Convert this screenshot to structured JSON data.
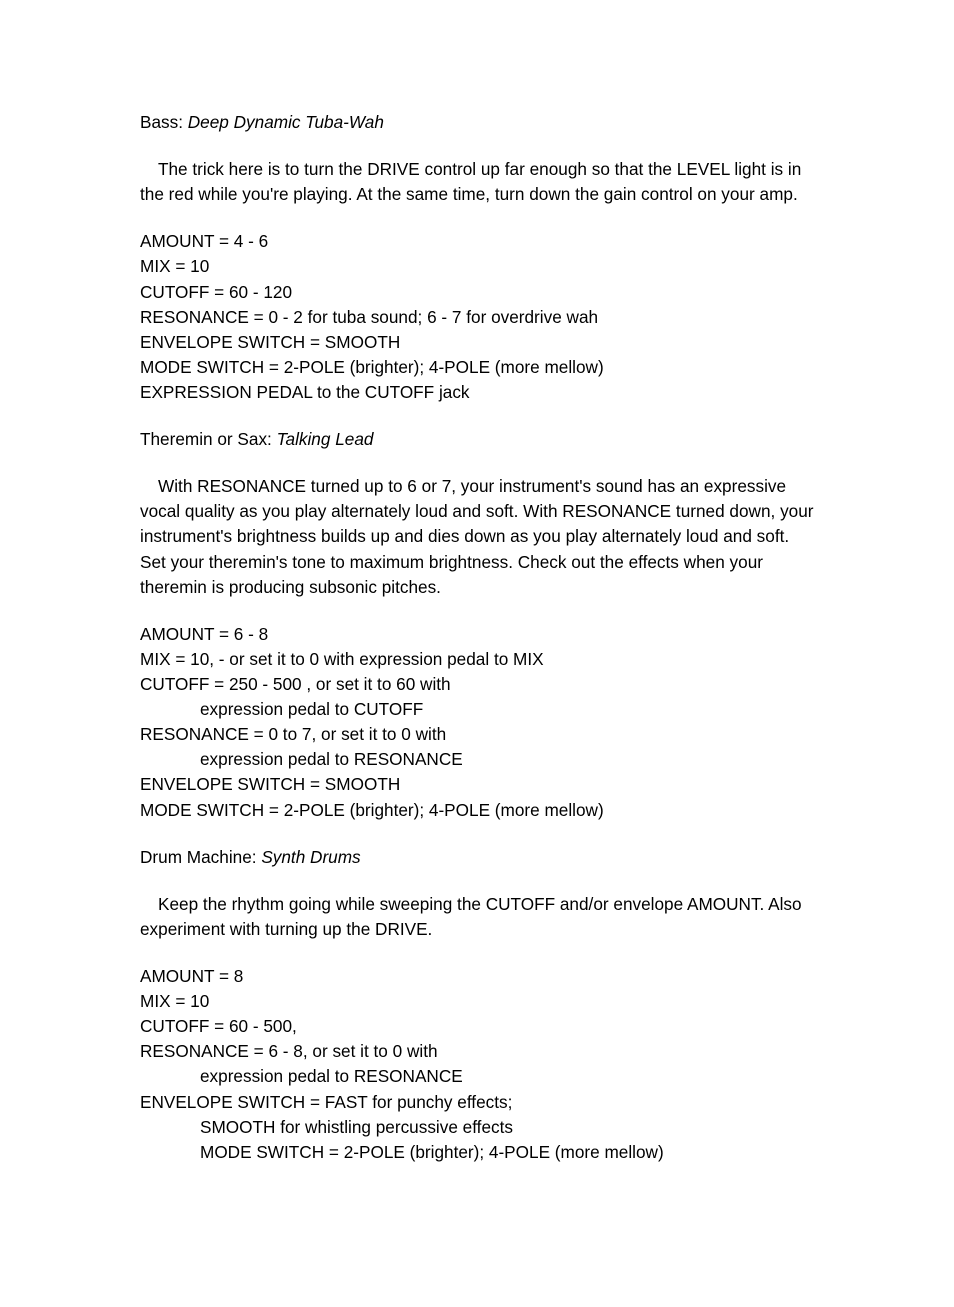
{
  "sections": [
    {
      "heading_prefix": "Bass: ",
      "heading_title": "Deep Dynamic Tuba-Wah",
      "paragraph": "The trick here is to turn the DRIVE control up far enough so that the LEVEL light is in the red while you're playing. At the same time, turn down the gain control on your amp.",
      "settings": [
        "AMOUNT = 4 - 6",
        "MIX = 10",
        "CUTOFF = 60 - 120",
        "RESONANCE = 0 - 2 for tuba sound; 6 - 7 for overdrive wah",
        "ENVELOPE SWITCH = SMOOTH",
        "MODE SWITCH = 2-POLE (brighter); 4-POLE (more mellow)",
        "EXPRESSION PEDAL to the CUTOFF jack"
      ],
      "conts": []
    },
    {
      "heading_prefix": "Theremin or Sax: ",
      "heading_title": "Talking Lead",
      "paragraph": "With RESONANCE turned up to 6 or 7, your instrument's sound has an expressive vocal quality as you play alternately loud and soft. With RESONANCE turned down, your instrument's brightness builds up and dies down as you play alternately loud and soft. Set your theremin's tone to maximum brightness. Check out the effects when your theremin is producing subsonic pitches.",
      "settings": [
        "AMOUNT = 6 - 8",
        "MIX = 10, - or set it to 0 with expression pedal to MIX",
        "CUTOFF = 250 - 500 , or set it to 60 with",
        "expression pedal to CUTOFF",
        "RESONANCE = 0 to 7, or set it to 0 with",
        "expression pedal to RESONANCE",
        "ENVELOPE SWITCH = SMOOTH",
        "MODE SWITCH = 2-POLE (brighter); 4-POLE (more mellow)"
      ],
      "conts": [
        3,
        5
      ]
    },
    {
      "heading_prefix": "Drum Machine: ",
      "heading_title": "Synth Drums",
      "paragraph": "Keep the rhythm going while sweeping the CUTOFF and/or envelope AMOUNT. Also experiment with turning up the DRIVE.",
      "settings": [
        "AMOUNT = 8",
        "MIX = 10",
        "CUTOFF = 60 - 500,",
        "RESONANCE = 6 - 8, or set it to 0 with",
        "expression pedal to RESONANCE",
        "ENVELOPE SWITCH = FAST for punchy effects;",
        "SMOOTH for whistling percussive effects",
        "MODE SWITCH = 2-POLE (brighter); 4-POLE (more mellow)"
      ],
      "conts": [
        4,
        6,
        7
      ]
    }
  ]
}
